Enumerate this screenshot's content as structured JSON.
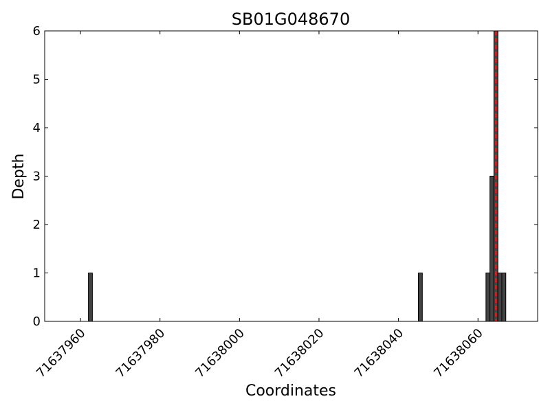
{
  "chart_data": {
    "type": "bar",
    "title": "SB01G048670",
    "xlabel": "Coordinates",
    "ylabel": "Depth",
    "xlim": [
      71637951,
      71638075
    ],
    "ylim": [
      0,
      6
    ],
    "x_ticks": [
      71637960,
      71637980,
      71638000,
      71638020,
      71638040,
      71638060
    ],
    "y_ticks": [
      0,
      1,
      2,
      3,
      4,
      5,
      6
    ],
    "bin_width": 1,
    "bars": [
      {
        "x": 71637962,
        "value": 1
      },
      {
        "x": 71638045,
        "value": 1
      },
      {
        "x": 71638062,
        "value": 1
      },
      {
        "x": 71638063,
        "value": 3
      },
      {
        "x": 71638064,
        "value": 6
      },
      {
        "x": 71638065,
        "value": 1
      },
      {
        "x": 71638066,
        "value": 1
      }
    ],
    "reference_line": {
      "x": 71638064.5,
      "style": "dashed"
    },
    "colors": {
      "bar_fill": "#444444",
      "bar_edge": "#000000",
      "reference_line": "#e31a1c"
    },
    "grid": false,
    "legend": false
  }
}
